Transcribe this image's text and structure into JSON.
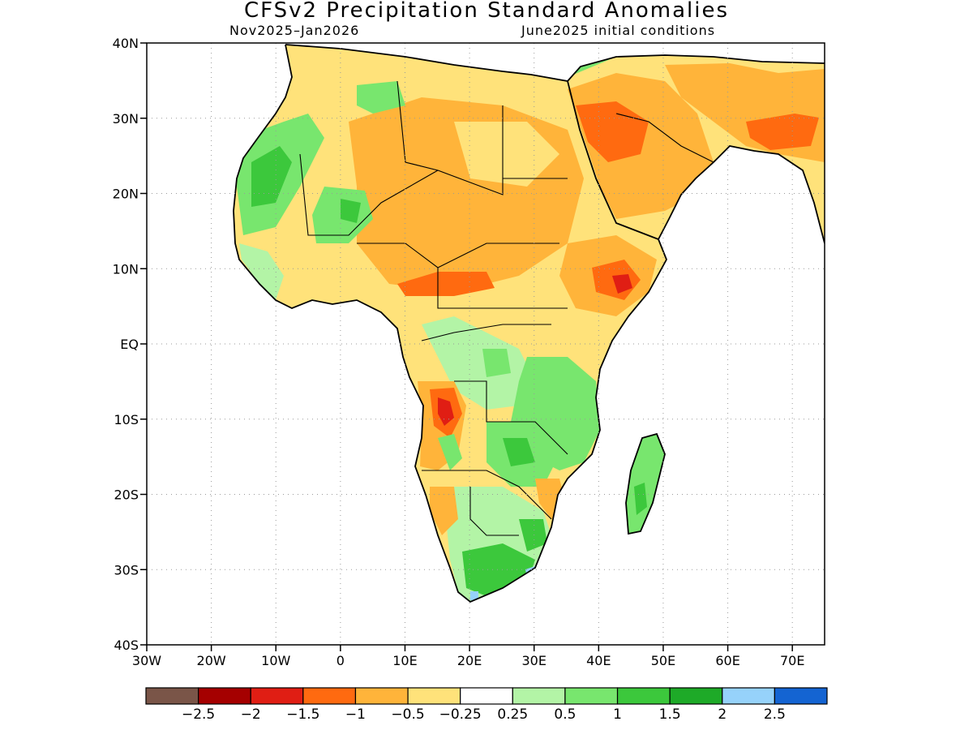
{
  "title": "CFSv2 Precipitation Standard Anomalies",
  "subtitle_left": "Nov2025–Jan2026",
  "subtitle_right": "June2025 initial conditions",
  "map": {
    "lat_labels": [
      "40N",
      "30N",
      "20N",
      "10N",
      "EQ",
      "10S",
      "20S",
      "30S",
      "40S"
    ],
    "lon_labels": [
      "30W",
      "20W",
      "10W",
      "0",
      "10E",
      "20E",
      "30E",
      "40E",
      "50E",
      "60E",
      "70E"
    ]
  },
  "colorbar": {
    "colors": [
      "#7a5548",
      "#a50000",
      "#e01e14",
      "#ff6a10",
      "#ffb43a",
      "#ffe27a",
      "#ffffff",
      "#b3f4a6",
      "#78e66e",
      "#3cc83c",
      "#1eaa28",
      "#96d2fa",
      "#1464d2"
    ],
    "labels": [
      "−2.5",
      "−2",
      "−1.5",
      "−1",
      "−0.5",
      "−0.25",
      "0.25",
      "0.5",
      "1",
      "1.5",
      "2",
      "2.5"
    ]
  }
}
